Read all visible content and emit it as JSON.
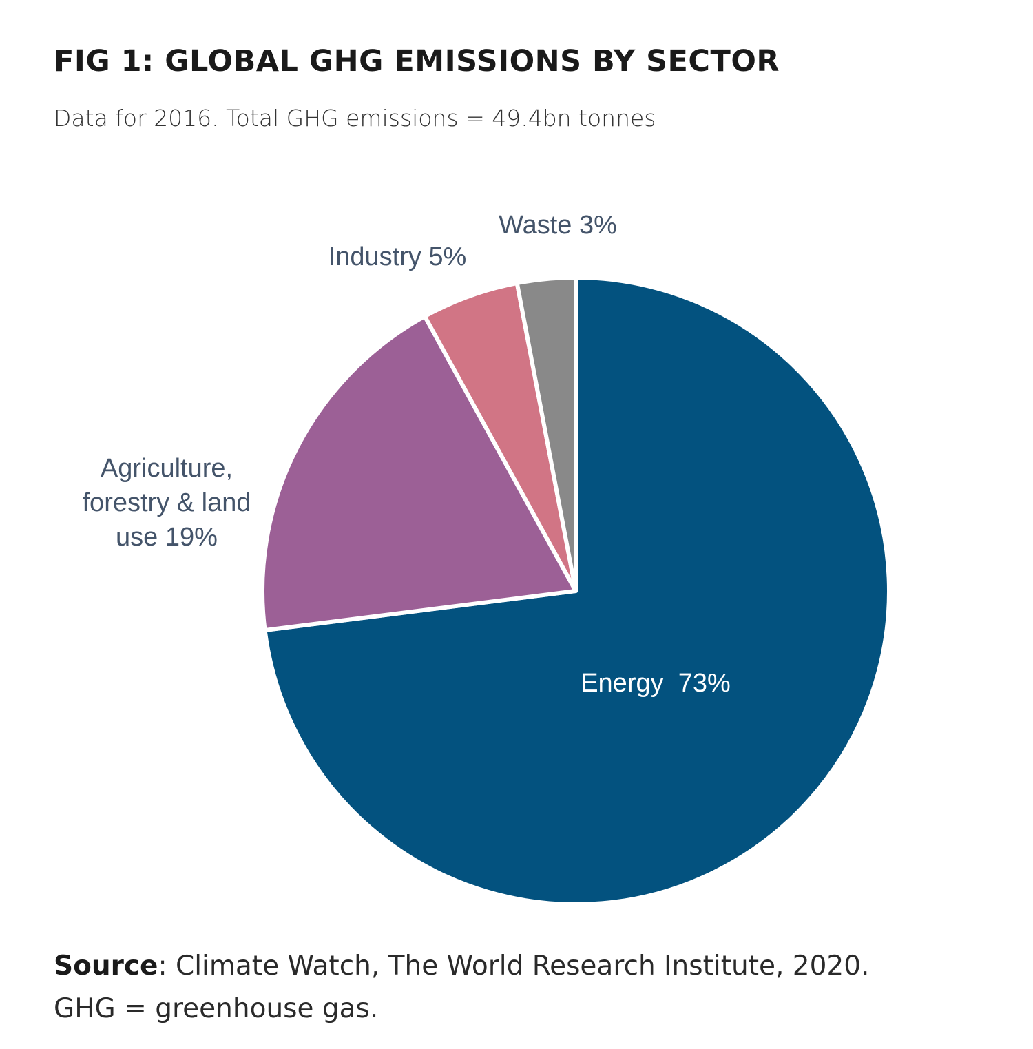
{
  "title": "FIG 1: GLOBAL GHG EMISSIONS BY SECTOR",
  "subtitle": "Data for 2016. Total GHG emissions = 49.4bn tonnes",
  "source": {
    "label": "Source",
    "text": ": Climate Watch, The World Research Institute, 2020.",
    "note": "GHG = greenhouse gas."
  },
  "colors": {
    "energy": "#03527f",
    "agriculture": "#9c6096",
    "industry": "#d17585",
    "waste": "#898989",
    "label_dark": "#44546a",
    "label_light": "#ffffff"
  },
  "chart_data": {
    "type": "pie",
    "title": "FIG 1: GLOBAL GHG EMISSIONS BY SECTOR",
    "subtitle": "Data for 2016. Total GHG emissions = 49.4bn tonnes",
    "slices": [
      {
        "name": "Energy",
        "value": 73,
        "label_lines": [
          "Energy  73%"
        ],
        "color": "#03527f",
        "label_color": "#ffffff"
      },
      {
        "name": "Agriculture, forestry & land use",
        "value": 19,
        "label_lines": [
          "Agriculture,",
          "forestry & land",
          "use 19%"
        ],
        "color": "#9c6096",
        "label_color": "#44546a"
      },
      {
        "name": "Industry",
        "value": 5,
        "label_lines": [
          "Industry 5%"
        ],
        "color": "#d17585",
        "label_color": "#44546a"
      },
      {
        "name": "Waste",
        "value": 3,
        "label_lines": [
          "Waste 3%"
        ],
        "color": "#898989",
        "label_color": "#44546a"
      }
    ],
    "start": "12 o'clock",
    "direction": "clockwise",
    "legend": "none"
  }
}
